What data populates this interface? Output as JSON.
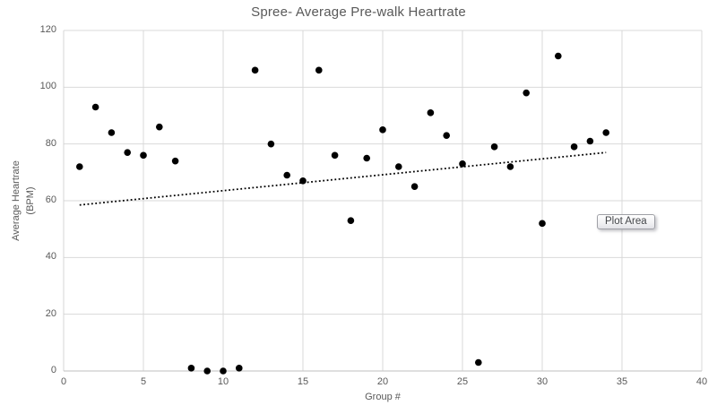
{
  "chart": {
    "title": "Spree- Average Pre-walk Heartrate",
    "x_axis_title": "Group #",
    "y_axis_title": "Average Heartrate\n(BPM)",
    "tooltip_label": "Plot Area"
  },
  "chart_data": {
    "type": "scatter",
    "title": "Spree- Average Pre-walk Heartrate",
    "xlabel": "Group #",
    "ylabel": "Average Heartrate (BPM)",
    "xlim": [
      0,
      40
    ],
    "ylim": [
      0,
      120
    ],
    "x_ticks": [
      0,
      5,
      10,
      15,
      20,
      25,
      30,
      35,
      40
    ],
    "y_ticks": [
      0,
      20,
      40,
      60,
      80,
      100,
      120
    ],
    "grid": true,
    "legend": false,
    "points": [
      [
        1,
        72
      ],
      [
        2,
        93
      ],
      [
        3,
        84
      ],
      [
        4,
        77
      ],
      [
        5,
        76
      ],
      [
        6,
        86
      ],
      [
        7,
        74
      ],
      [
        8,
        1
      ],
      [
        9,
        0
      ],
      [
        10,
        0
      ],
      [
        11,
        1
      ],
      [
        12,
        106
      ],
      [
        13,
        80
      ],
      [
        14,
        69
      ],
      [
        15,
        67
      ],
      [
        16,
        106
      ],
      [
        17,
        76
      ],
      [
        18,
        53
      ],
      [
        19,
        75
      ],
      [
        20,
        85
      ],
      [
        21,
        72
      ],
      [
        22,
        65
      ],
      [
        23,
        91
      ],
      [
        24,
        83
      ],
      [
        25,
        73
      ],
      [
        26,
        3
      ],
      [
        27,
        79
      ],
      [
        28,
        72
      ],
      [
        29,
        98
      ],
      [
        30,
        52
      ],
      [
        31,
        111
      ],
      [
        32,
        79
      ],
      [
        33,
        81
      ],
      [
        34,
        84
      ]
    ],
    "trendline": {
      "style": "dotted",
      "x1": 1,
      "y1": 58.5,
      "x2": 34,
      "y2": 77
    },
    "colors": {
      "point": "#000000",
      "trendline": "#000000",
      "gridline": "#d9d9d9",
      "x_axis_line": "#bfbfbf",
      "y_axis_line": "#d4d4d4",
      "text": "#595959"
    }
  }
}
